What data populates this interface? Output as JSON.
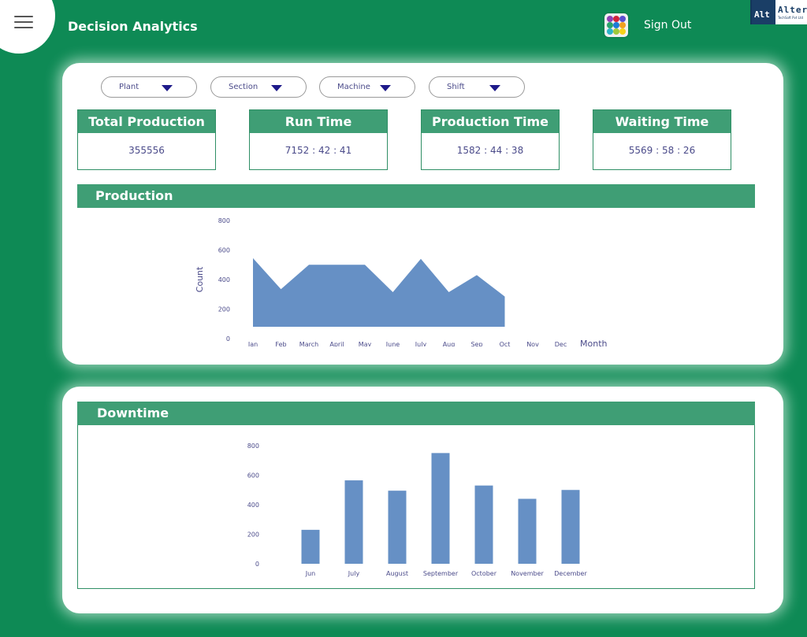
{
  "header": {
    "title": "Decision Analytics",
    "sign_out": "Sign Out",
    "logo": {
      "brand": "Alter",
      "mark": "Alt",
      "tagline": "TechSoft Pvt Ltd"
    },
    "icons": {
      "menu": "hamburger-icon",
      "apps": "apps-grid-icon"
    }
  },
  "filters": [
    {
      "label": "Plant"
    },
    {
      "label": "Section"
    },
    {
      "label": "Machine"
    },
    {
      "label": "Shift"
    }
  ],
  "kpis": [
    {
      "title": "Total Production",
      "value": "355556"
    },
    {
      "title": "Run Time",
      "value": "7152 : 42 : 41"
    },
    {
      "title": "Production Time",
      "value": "1582 : 44 : 38"
    },
    {
      "title": "Waiting Time",
      "value": "5569 : 58 : 26"
    }
  ],
  "sections": {
    "production": "Production",
    "downtime": "Downtime"
  },
  "colors": {
    "background": "#0e8a55",
    "bar_header": "#3f9e75",
    "series": "#6690c5",
    "axis_text": "#4b4b8a"
  },
  "chart_data": [
    {
      "type": "area",
      "xlabel": "Month",
      "ylabel": "Count",
      "x": [
        "Jan",
        "Feb",
        "March",
        "April",
        "May",
        "June",
        "July",
        "Aug",
        "Sep",
        "Oct",
        "Nov",
        "Dec"
      ],
      "series": [
        {
          "values": [
            545,
            335,
            500,
            500,
            500,
            315,
            540,
            315,
            430,
            285,
            null,
            null
          ]
        }
      ],
      "yticks": [
        0,
        200,
        400,
        600,
        800
      ],
      "ylim": [
        0,
        800
      ],
      "baseline": 80,
      "grid": false
    },
    {
      "type": "bar",
      "xlabel": "",
      "ylabel": "",
      "categories": [
        "Jun",
        "July",
        "August",
        "September",
        "October",
        "November",
        "December"
      ],
      "values": [
        230,
        565,
        495,
        750,
        530,
        440,
        500
      ],
      "yticks": [
        0,
        200,
        400,
        600,
        800
      ],
      "ylim": [
        0,
        800
      ],
      "grid": false
    }
  ]
}
